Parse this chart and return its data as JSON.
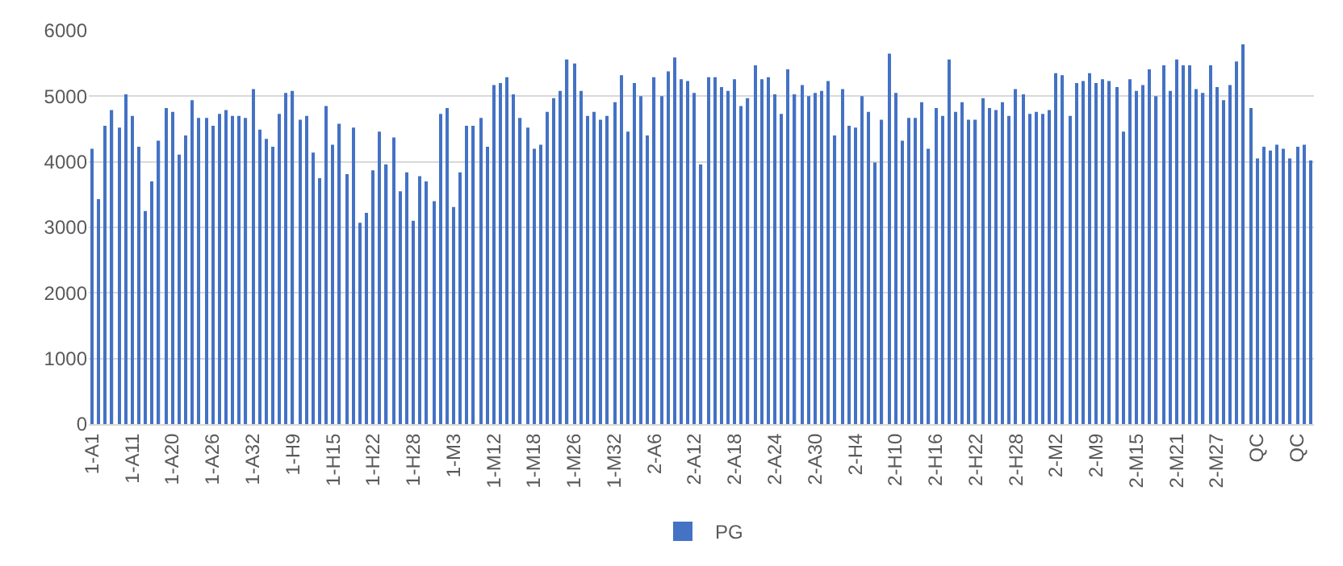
{
  "chart_data": {
    "type": "bar",
    "categories": [
      "1-A1",
      null,
      null,
      null,
      null,
      null,
      "1-A11",
      null,
      null,
      null,
      null,
      null,
      "1-A20",
      null,
      null,
      null,
      null,
      null,
      "1-A26",
      null,
      null,
      null,
      null,
      null,
      "1-A32",
      null,
      null,
      null,
      null,
      null,
      "1-H9",
      null,
      null,
      null,
      null,
      null,
      "1-H15",
      null,
      null,
      null,
      null,
      null,
      "1-H22",
      null,
      null,
      null,
      null,
      null,
      "1-H28",
      null,
      null,
      null,
      null,
      null,
      "1-M3",
      null,
      null,
      null,
      null,
      null,
      "1-M12",
      null,
      null,
      null,
      null,
      null,
      "1-M18",
      null,
      null,
      null,
      null,
      null,
      "1-M26",
      null,
      null,
      null,
      null,
      null,
      "1-M32",
      null,
      null,
      null,
      null,
      null,
      "2-A6",
      null,
      null,
      null,
      null,
      null,
      "2-A12",
      null,
      null,
      null,
      null,
      null,
      "2-A18",
      null,
      null,
      null,
      null,
      null,
      "2-A24",
      null,
      null,
      null,
      null,
      null,
      "2-A30",
      null,
      null,
      null,
      null,
      null,
      "2-H4",
      null,
      null,
      null,
      null,
      null,
      "2-H10",
      null,
      null,
      null,
      null,
      null,
      "2-H16",
      null,
      null,
      null,
      null,
      null,
      "2-H22",
      null,
      null,
      null,
      null,
      null,
      "2-H28",
      null,
      null,
      null,
      null,
      null,
      "2-M2",
      null,
      null,
      null,
      null,
      null,
      "2-M9",
      null,
      null,
      null,
      null,
      null,
      "2-M15",
      null,
      null,
      null,
      null,
      null,
      "2-M21",
      null,
      null,
      null,
      null,
      null,
      "2-M27",
      null,
      null,
      null,
      null,
      null,
      "QC",
      null,
      null,
      null,
      null,
      null,
      "QC",
      null,
      null
    ],
    "series": [
      {
        "name": "PG",
        "color": "#4472c4",
        "values": [
          4200,
          3430,
          4550,
          4790,
          4520,
          5030,
          4700,
          4230,
          3250,
          3700,
          4320,
          4820,
          4760,
          4110,
          4400,
          4940,
          4670,
          4670,
          4550,
          4730,
          4790,
          4700,
          4700,
          4670,
          5110,
          4490,
          4350,
          4230,
          4730,
          5050,
          5080,
          4640,
          4700,
          4140,
          3750,
          4850,
          4260,
          4580,
          3810,
          4520,
          3070,
          3220,
          3870,
          4460,
          3960,
          4370,
          3550,
          3840,
          3100,
          3780,
          3700,
          3400,
          4730,
          4820,
          3310,
          3840,
          4550,
          4550,
          4670,
          4230,
          5170,
          5200,
          5290,
          5030,
          4670,
          4520,
          4200,
          4260,
          4760,
          4970,
          5080,
          5560,
          5500,
          5080,
          4700,
          4760,
          4640,
          4700,
          4910,
          5320,
          4460,
          5200,
          5000,
          4400,
          5290,
          5000,
          5380,
          5590,
          5260,
          5230,
          5050,
          3960,
          5290,
          5290,
          5140,
          5080,
          5260,
          4850,
          4970,
          5470,
          5260,
          5290,
          5030,
          4730,
          5410,
          5030,
          5170,
          5000,
          5050,
          5080,
          5230,
          4400,
          5110,
          4550,
          4520,
          5000,
          4760,
          3990,
          4640,
          5650,
          5050,
          4320,
          4670,
          4670,
          4910,
          4200,
          4820,
          4700,
          5560,
          4760,
          4910,
          4640,
          4640,
          4970,
          4820,
          4790,
          4910,
          4700,
          5110,
          5030,
          4730,
          4760,
          4730,
          4790,
          5350,
          5320,
          4700,
          5200,
          5230,
          5350,
          5200,
          5260,
          5230,
          5140,
          4460,
          5260,
          5080,
          5170,
          5410,
          5000,
          5470,
          5080,
          5560,
          5470,
          5470,
          5110,
          5050,
          5470,
          5140,
          4940,
          5170,
          5530,
          5790,
          4820,
          4050,
          4230,
          4170,
          4260,
          4200,
          4050,
          4230,
          4260,
          4020
        ]
      }
    ],
    "ylim": [
      0,
      6000
    ],
    "yticks": [
      0,
      1000,
      2000,
      3000,
      4000,
      5000,
      6000
    ],
    "grid": "y",
    "legend": "bottom"
  }
}
